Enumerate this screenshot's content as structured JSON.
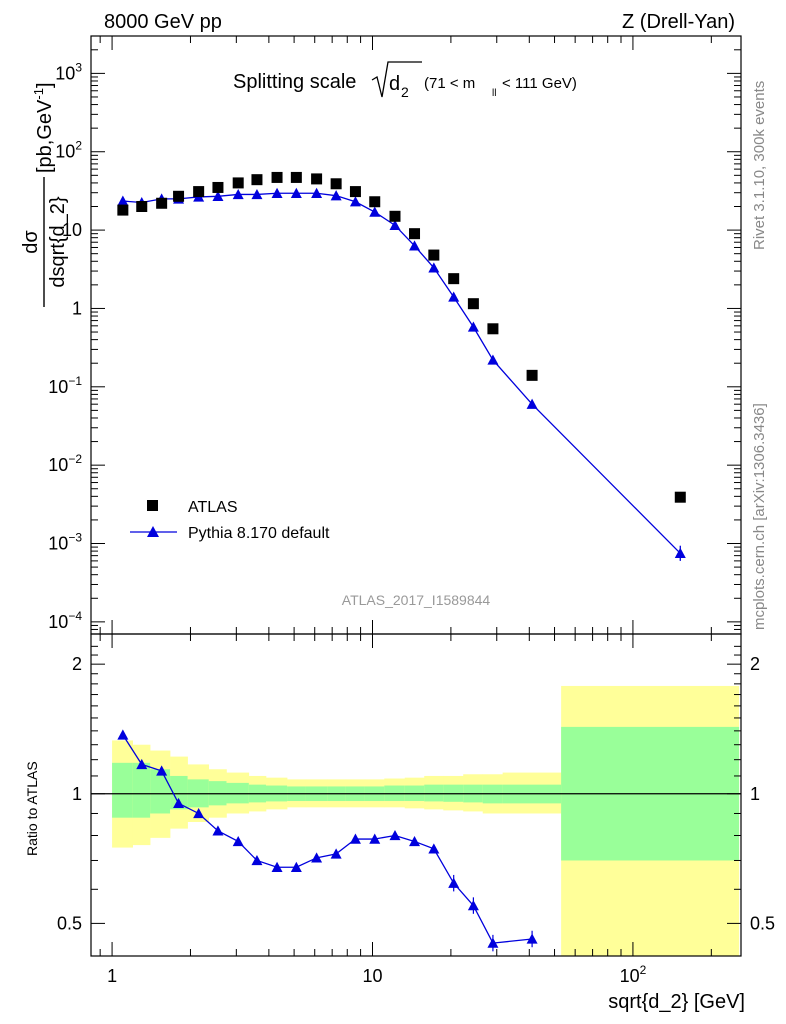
{
  "header": {
    "left": "8000 GeV pp",
    "right": "Z (Drell-Yan)"
  },
  "side_labels": {
    "rivet": "Rivet 3.1.10,  300k events",
    "mcplots": "mcplots.cern.ch [arXiv:1306.3436]"
  },
  "main_panel": {
    "title_prefix": "Splitting scale",
    "title_radicand": "d",
    "title_radicand_sub": "2",
    "title_range_a": "(71 < m",
    "title_range_sub": "ll",
    "title_range_b": " < 111 GeV)",
    "ylabel_num": "dσ",
    "ylabel_den": "dsqrt{d_2}",
    "ylabel_units": "[pb,GeV",
    "ylabel_units_sup": "-1",
    "ylabel_units_close": "]",
    "watermark": "ATLAS_2017_I1589844",
    "legend": [
      {
        "label": "ATLAS",
        "marker": "square",
        "color": "#000000"
      },
      {
        "label": "Pythia 8.170 default",
        "marker": "triangle",
        "color": "#0000dd"
      }
    ]
  },
  "ratio_panel": {
    "ylabel": "Ratio to ATLAS",
    "xlabel": "sqrt{d_2} [GeV]"
  },
  "colors": {
    "data": "#000000",
    "mc": "#0000dd",
    "band_inner": "#99ff99",
    "band_outer": "#ffff99"
  },
  "chart_data": [
    {
      "type": "scatter",
      "panel": "main",
      "xscale": "log",
      "yscale": "log",
      "xlim": [
        0.83,
        260
      ],
      "ylim": [
        7e-05,
        3000
      ],
      "x_ticks": [
        "1",
        "10",
        "10^2"
      ],
      "y_ticks": [
        "10^-4",
        "10^-3",
        "10^-2",
        "10^-1",
        "1",
        "10",
        "10^2",
        "10^3"
      ],
      "series": [
        {
          "name": "ATLAS",
          "x": [
            1.1,
            1.3,
            1.55,
            1.8,
            2.15,
            2.55,
            3.05,
            3.6,
            4.3,
            5.1,
            6.1,
            7.25,
            8.6,
            10.2,
            12.2,
            14.5,
            17.2,
            20.5,
            24.4,
            29,
            41,
            152
          ],
          "y": [
            18,
            20,
            22,
            27,
            31,
            35,
            40,
            44,
            47,
            47,
            45,
            39,
            31,
            23,
            15,
            9,
            4.8,
            2.4,
            1.15,
            0.55,
            0.14,
            0.0039
          ]
        },
        {
          "name": "Pythia 8.170 default",
          "x": [
            1.1,
            1.3,
            1.55,
            1.8,
            2.15,
            2.55,
            3.05,
            3.6,
            4.3,
            5.1,
            6.1,
            7.25,
            8.6,
            10.2,
            12.2,
            14.5,
            17.2,
            20.5,
            24.4,
            29,
            41,
            152
          ],
          "y": [
            23.5,
            22.5,
            25,
            25,
            26.5,
            27,
            28.5,
            28.5,
            29.5,
            29.5,
            29.5,
            27.5,
            23,
            17,
            11.5,
            6.3,
            3.3,
            1.4,
            0.58,
            0.22,
            0.06,
            0.00075
          ]
        }
      ]
    },
    {
      "type": "line",
      "panel": "ratio",
      "xscale": "log",
      "yscale": "log",
      "xlim": [
        0.83,
        260
      ],
      "ylim": [
        0.42,
        2.35
      ],
      "x_ticks": [
        "1",
        "10",
        "10^2"
      ],
      "y_ticks": [
        "0.5",
        "1",
        "2"
      ],
      "reference_line": 1,
      "series": [
        {
          "name": "Pythia 8.170 default",
          "x": [
            1.1,
            1.3,
            1.55,
            1.8,
            2.15,
            2.55,
            3.05,
            3.6,
            4.3,
            5.1,
            6.1,
            7.25,
            8.6,
            10.2,
            12.2,
            14.5,
            17.2,
            20.5,
            24.4,
            29,
            41
          ],
          "y": [
            1.37,
            1.17,
            1.13,
            0.95,
            0.9,
            0.82,
            0.775,
            0.7,
            0.675,
            0.675,
            0.71,
            0.725,
            0.785,
            0.785,
            0.8,
            0.775,
            0.745,
            0.62,
            0.55,
            0.45,
            0.46
          ]
        }
      ],
      "uncertainty_bands": {
        "bin_edges": [
          1,
          1.2,
          1.4,
          1.67,
          1.95,
          2.35,
          2.75,
          3.35,
          3.9,
          4.7,
          5.55,
          6.7,
          7.9,
          9.35,
          11.1,
          13.3,
          15.8,
          18.7,
          22.3,
          26.5,
          31.6,
          53,
          255
        ],
        "inner_low": [
          0.88,
          0.88,
          0.9,
          0.92,
          0.93,
          0.94,
          0.95,
          0.955,
          0.96,
          0.962,
          0.962,
          0.962,
          0.962,
          0.962,
          0.962,
          0.962,
          0.96,
          0.958,
          0.955,
          0.95,
          0.95,
          0.7
        ],
        "inner_high": [
          1.18,
          1.18,
          1.14,
          1.1,
          1.08,
          1.07,
          1.06,
          1.05,
          1.045,
          1.04,
          1.04,
          1.04,
          1.04,
          1.04,
          1.045,
          1.045,
          1.05,
          1.05,
          1.05,
          1.05,
          1.05,
          1.43
        ],
        "outer_low": [
          0.75,
          0.76,
          0.79,
          0.83,
          0.86,
          0.88,
          0.9,
          0.91,
          0.92,
          0.93,
          0.93,
          0.93,
          0.93,
          0.93,
          0.93,
          0.925,
          0.92,
          0.915,
          0.91,
          0.9,
          0.9,
          0.4
        ],
        "outer_high": [
          1.33,
          1.3,
          1.26,
          1.22,
          1.17,
          1.14,
          1.12,
          1.1,
          1.09,
          1.08,
          1.08,
          1.08,
          1.08,
          1.08,
          1.085,
          1.09,
          1.1,
          1.1,
          1.11,
          1.11,
          1.12,
          1.78
        ]
      }
    }
  ]
}
